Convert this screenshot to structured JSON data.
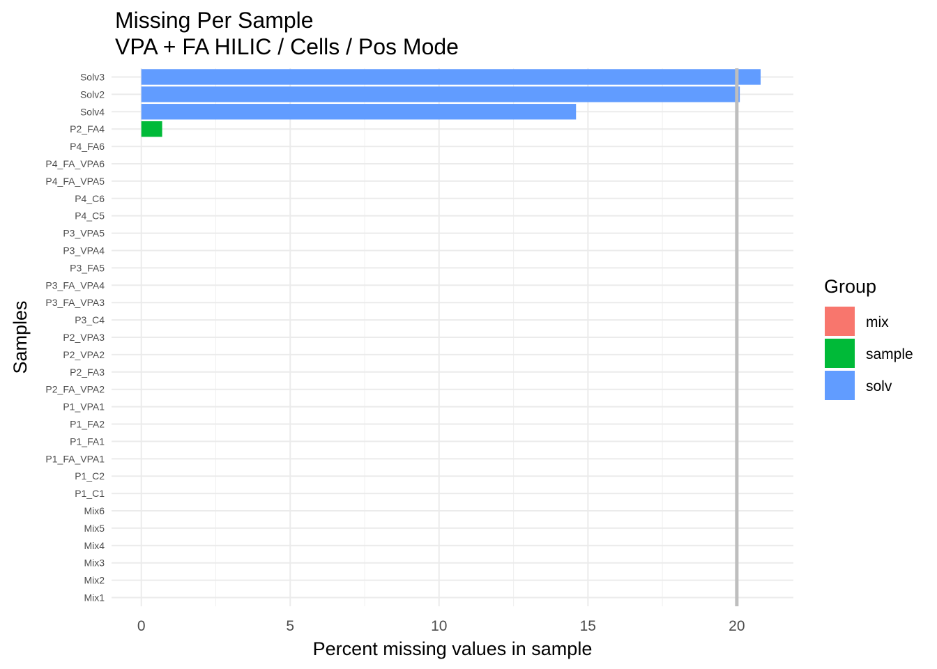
{
  "title_line1": "Missing Per Sample",
  "title_line2": "VPA + FA HILIC / Cells / Pos Mode",
  "chart_data": {
    "type": "bar",
    "orientation": "horizontal",
    "xlabel": "Percent missing values in sample",
    "ylabel": "Samples",
    "xlim": [
      -1,
      21.9
    ],
    "x_ticks": [
      0,
      5,
      10,
      15,
      20
    ],
    "threshold_line": 20,
    "grid": true,
    "legend_position": "right",
    "legend_title": "Group",
    "groups": [
      {
        "name": "mix",
        "color": "#F8766D"
      },
      {
        "name": "sample",
        "color": "#00BA38"
      },
      {
        "name": "solv",
        "color": "#619CFF"
      }
    ],
    "categories": [
      "Solv3",
      "Solv2",
      "Solv4",
      "P2_FA4",
      "P4_FA6",
      "P4_FA_VPA6",
      "P4_FA_VPA5",
      "P4_C6",
      "P4_C5",
      "P3_VPA5",
      "P3_VPA4",
      "P3_FA5",
      "P3_FA_VPA4",
      "P3_FA_VPA3",
      "P3_C4",
      "P2_VPA3",
      "P2_VPA2",
      "P2_FA3",
      "P2_FA_VPA2",
      "P1_VPA1",
      "P1_FA2",
      "P1_FA1",
      "P1_FA_VPA1",
      "P1_C2",
      "P1_C1",
      "Mix6",
      "Mix5",
      "Mix4",
      "Mix3",
      "Mix2",
      "Mix1"
    ],
    "values": [
      20.8,
      20.1,
      14.6,
      0.7,
      0,
      0,
      0,
      0,
      0,
      0,
      0,
      0,
      0,
      0,
      0,
      0,
      0,
      0,
      0,
      0,
      0,
      0,
      0,
      0,
      0,
      0,
      0,
      0,
      0,
      0,
      0
    ],
    "group_of": [
      "solv",
      "solv",
      "solv",
      "sample",
      "sample",
      "sample",
      "sample",
      "sample",
      "sample",
      "sample",
      "sample",
      "sample",
      "sample",
      "sample",
      "sample",
      "sample",
      "sample",
      "sample",
      "sample",
      "sample",
      "sample",
      "sample",
      "sample",
      "sample",
      "sample",
      "mix",
      "mix",
      "mix",
      "mix",
      "mix",
      "mix"
    ]
  }
}
